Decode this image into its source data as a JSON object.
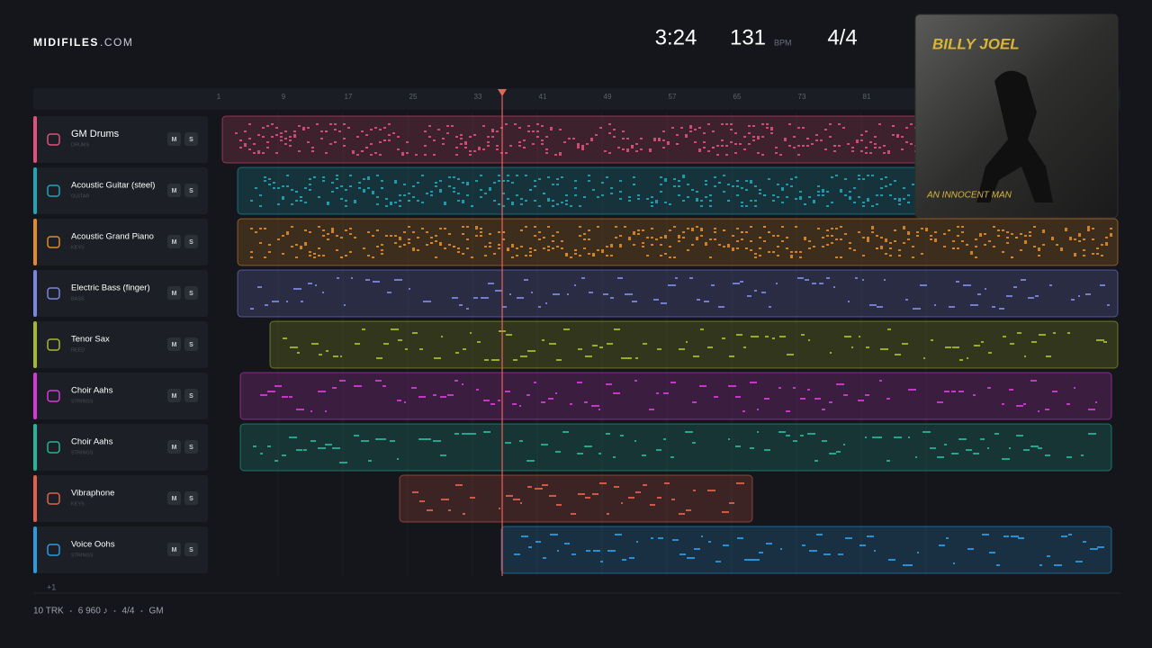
{
  "header": {
    "brand": "MIDIFILES",
    "brand_suffix": ".COM",
    "time": "3:24",
    "tempo": "131",
    "tempo_unit": "BPM",
    "meter": "4/4"
  },
  "ruler": {
    "bars": [
      1,
      9,
      17,
      25,
      33,
      41,
      49,
      57,
      65,
      73,
      81
    ]
  },
  "buttons": {
    "mute": "M",
    "solo": "S"
  },
  "tracks": [
    {
      "name": "GM Drums",
      "category": "DRUMS",
      "color": "#e0507a"
    },
    {
      "name": "Acoustic Guitar (steel)",
      "category": "GUITAR",
      "color": "#1fa5b8"
    },
    {
      "name": "Acoustic Grand Piano",
      "category": "KEYS",
      "color": "#e08a2a"
    },
    {
      "name": "Electric Bass (finger)",
      "category": "BASS",
      "color": "#7b86e0"
    },
    {
      "name": "Tenor Sax",
      "category": "REED",
      "color": "#a6b82a"
    },
    {
      "name": "Choir Aahs",
      "category": "STRINGS",
      "color": "#d63ad6"
    },
    {
      "name": "Choir Aahs",
      "category": "STRINGS",
      "color": "#25b39a"
    },
    {
      "name": "Vibraphone",
      "category": "KEYS",
      "color": "#e0604a"
    },
    {
      "name": "Voice Oohs",
      "category": "STRINGS",
      "color": "#2a9be0"
    }
  ],
  "more_tracks": "+1",
  "footer": {
    "items": [
      "10 TRK",
      "6 960 ♪",
      "4/4",
      "GM"
    ]
  },
  "album": {
    "artist": "BILLY JOEL",
    "title": "AN INNOCENT MAN"
  }
}
